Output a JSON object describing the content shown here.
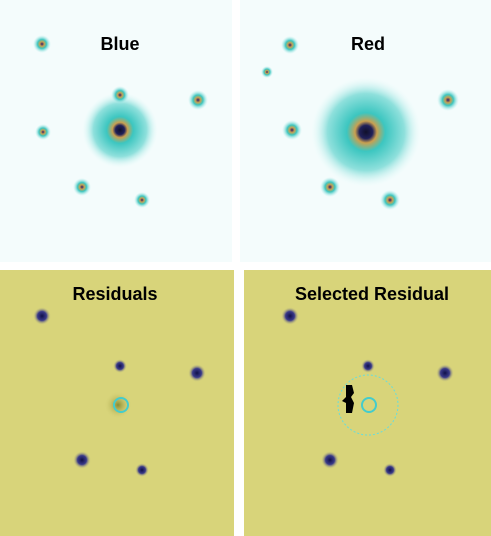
{
  "panels": [
    {
      "title": "Blue"
    },
    {
      "title": "Red"
    },
    {
      "title": "Residuals"
    },
    {
      "title": "Selected Residual"
    }
  ]
}
